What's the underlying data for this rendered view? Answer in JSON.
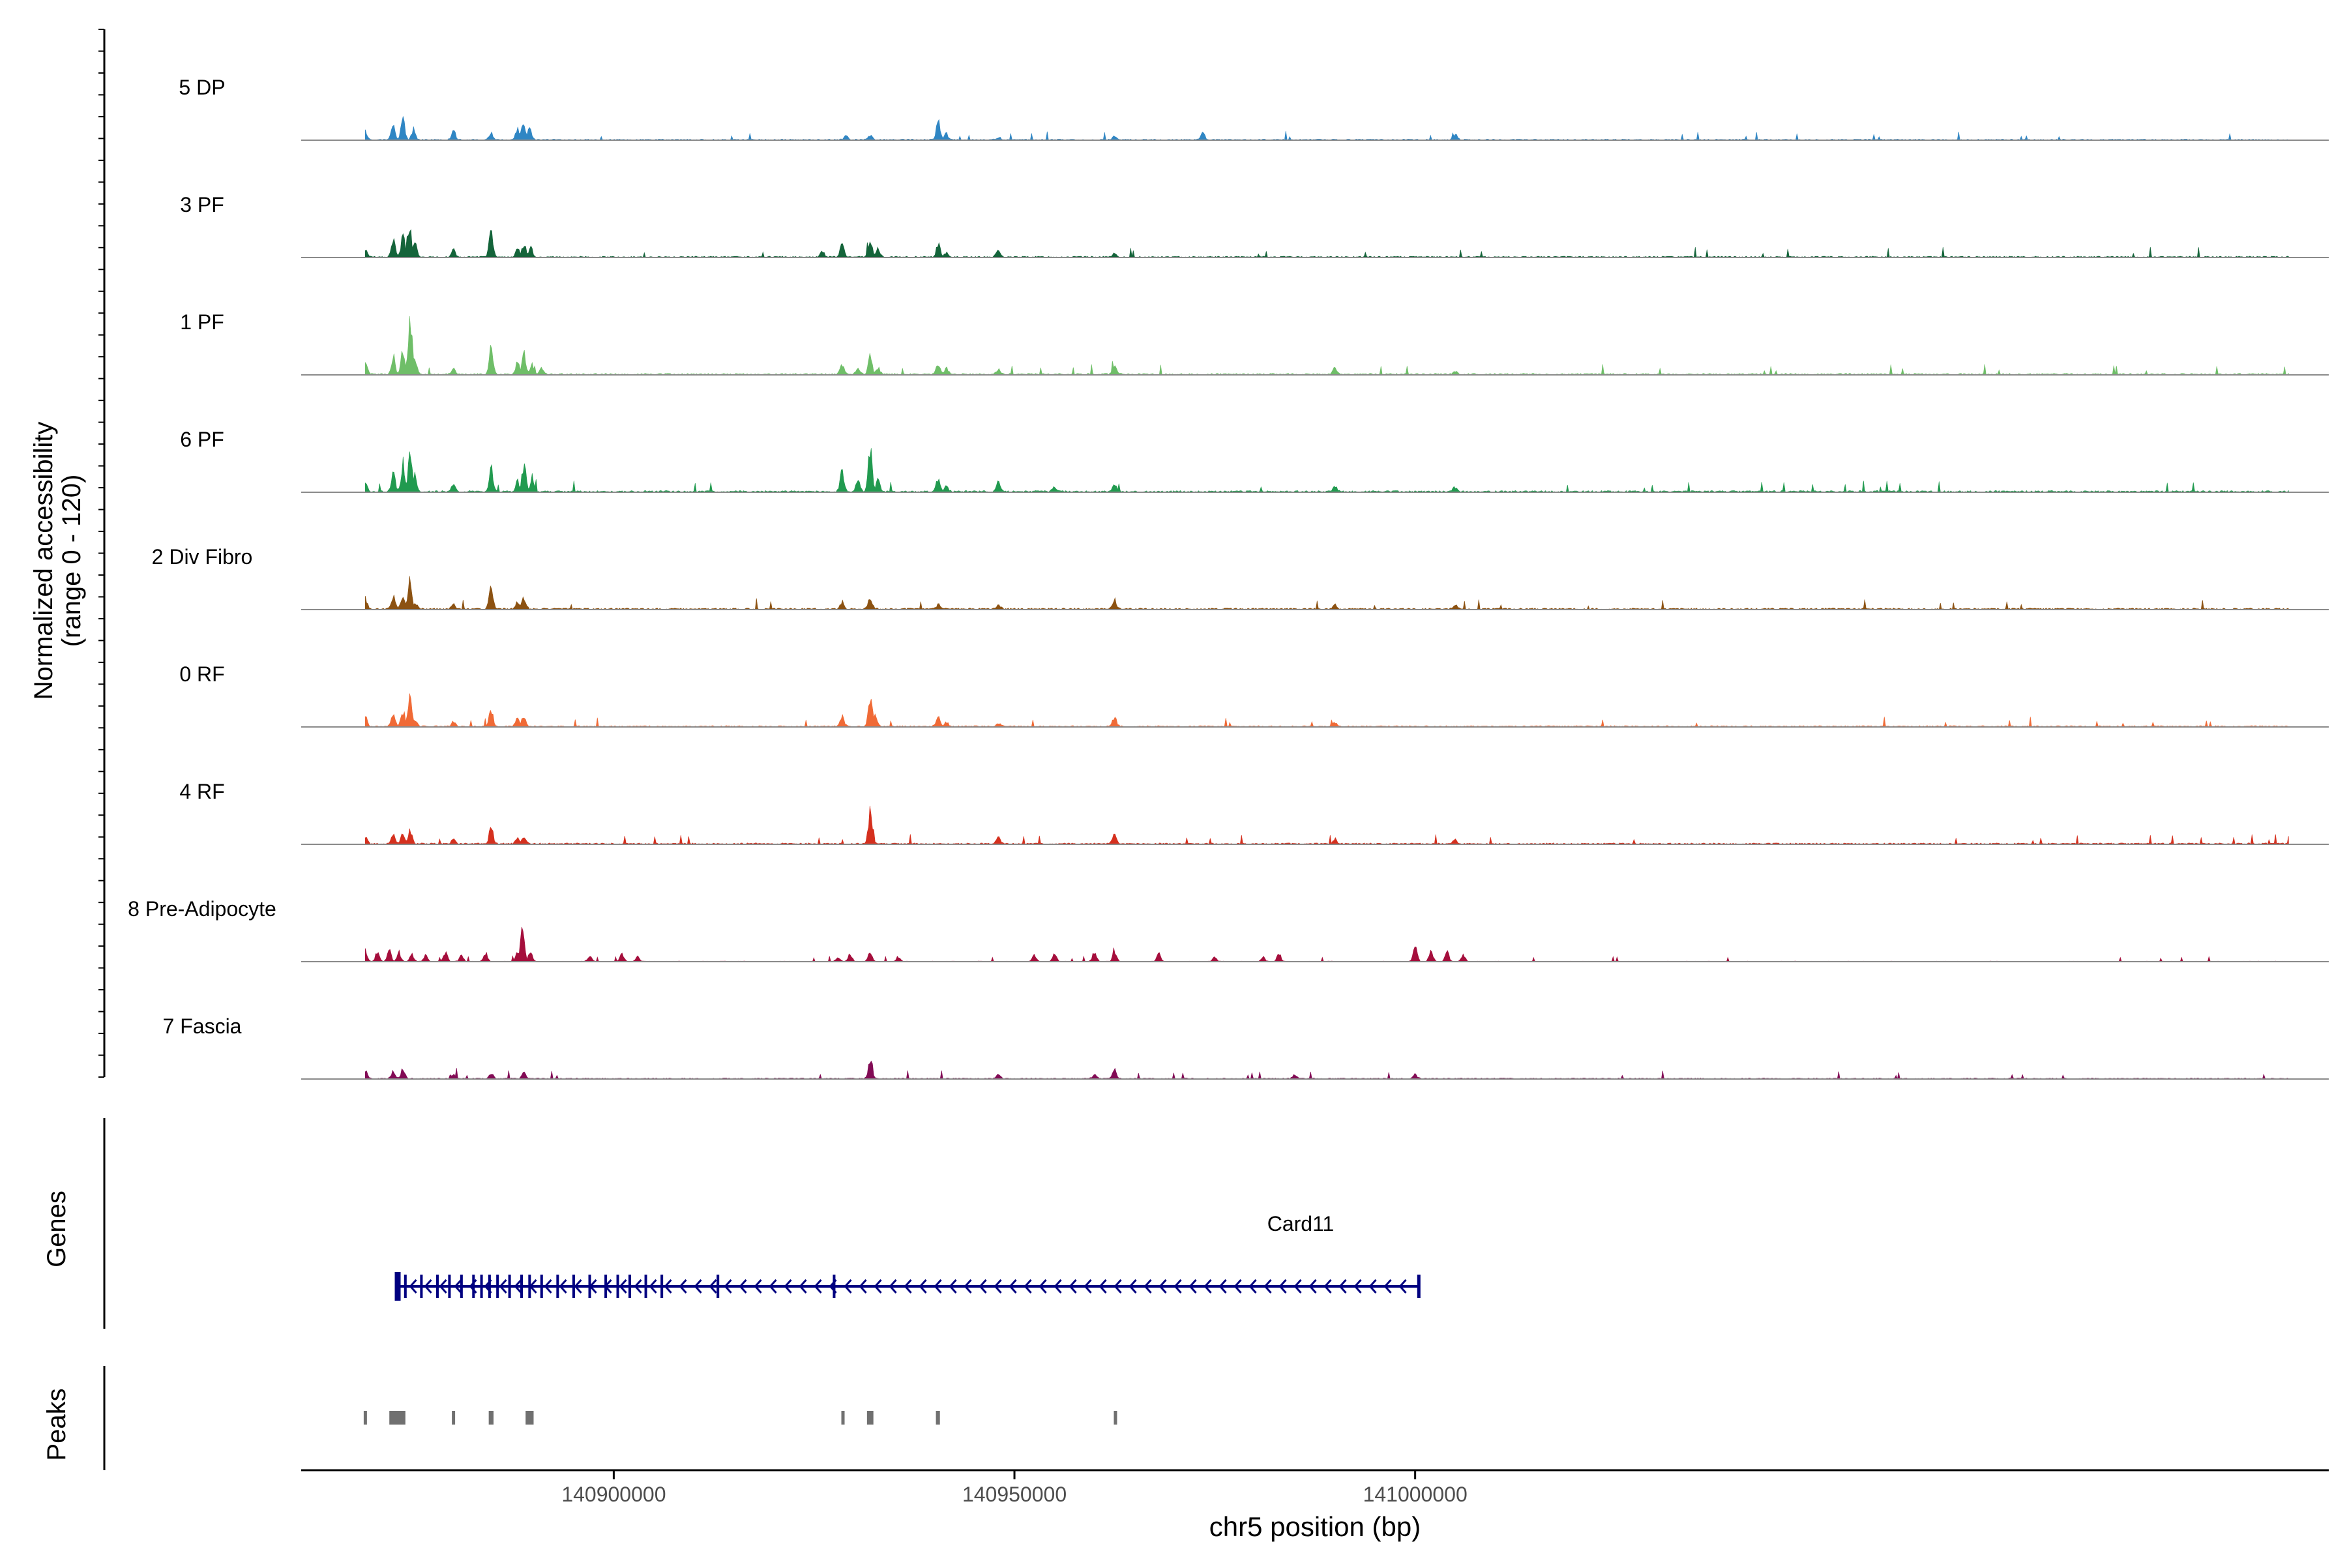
{
  "chart_data": {
    "type": "area",
    "title": "",
    "ylabel_line1": "Normalized accessibility",
    "ylabel_line2": "(range 0 - 120)",
    "ylim": [
      0,
      120
    ],
    "xlabel": "chr5 position (bp)",
    "xlim": [
      140861000,
      141114000
    ],
    "xticks": [
      {
        "value": 140900000,
        "label": "140900000"
      },
      {
        "value": 140950000,
        "label": "140950000"
      },
      {
        "value": 141000000,
        "label": "141000000"
      }
    ],
    "data_start": 140869000,
    "data_end": 141109000,
    "grid": false,
    "legend": "none",
    "series": [
      {
        "name": "5 DP",
        "color": "#2f86c4",
        "seed": 11,
        "noise": 1.2,
        "peaks": [
          [
            140869000,
            12
          ],
          [
            140872500,
            20
          ],
          [
            140873700,
            26
          ],
          [
            140875000,
            14
          ],
          [
            140880000,
            12
          ],
          [
            140884700,
            8
          ],
          [
            140888000,
            14
          ],
          [
            140888700,
            24
          ],
          [
            140889500,
            16
          ],
          [
            140929000,
            6
          ],
          [
            140932000,
            6
          ],
          [
            140940500,
            24
          ],
          [
            140941500,
            8
          ],
          [
            140948000,
            4
          ],
          [
            140962500,
            6
          ],
          [
            140973500,
            9
          ],
          [
            141005000,
            8
          ]
        ]
      },
      {
        "name": "3 PF",
        "color": "#14643a",
        "seed": 23,
        "noise": 1.4,
        "peaks": [
          [
            140869000,
            10
          ],
          [
            140872500,
            22
          ],
          [
            140873700,
            28
          ],
          [
            140874500,
            44
          ],
          [
            140875200,
            18
          ],
          [
            140880000,
            10
          ],
          [
            140884700,
            34
          ],
          [
            140888000,
            12
          ],
          [
            140888800,
            18
          ],
          [
            140889600,
            12
          ],
          [
            140926000,
            8
          ],
          [
            140928500,
            18
          ],
          [
            140932000,
            26
          ],
          [
            140933000,
            12
          ],
          [
            140940500,
            18
          ],
          [
            140941500,
            6
          ],
          [
            140948000,
            10
          ],
          [
            140962500,
            5
          ]
        ]
      },
      {
        "name": "1 PF",
        "color": "#6fbe68",
        "seed": 37,
        "noise": 1.6,
        "peaks": [
          [
            140869000,
            14
          ],
          [
            140872500,
            22
          ],
          [
            140873700,
            30
          ],
          [
            140874600,
            82
          ],
          [
            140875200,
            20
          ],
          [
            140880000,
            8
          ],
          [
            140884700,
            34
          ],
          [
            140888000,
            16
          ],
          [
            140888800,
            26
          ],
          [
            140889800,
            14
          ],
          [
            140891000,
            8
          ],
          [
            140928500,
            12
          ],
          [
            140930500,
            8
          ],
          [
            140932000,
            22
          ],
          [
            140933000,
            10
          ],
          [
            140940500,
            16
          ],
          [
            140941500,
            8
          ],
          [
            140948000,
            6
          ],
          [
            140962500,
            10
          ],
          [
            140990000,
            10
          ],
          [
            141005000,
            4
          ]
        ]
      },
      {
        "name": "6 PF",
        "color": "#219a4f",
        "seed": 53,
        "noise": 1.8,
        "peaks": [
          [
            140869000,
            14
          ],
          [
            140872500,
            24
          ],
          [
            140873700,
            36
          ],
          [
            140874600,
            62
          ],
          [
            140875200,
            22
          ],
          [
            140880000,
            10
          ],
          [
            140884700,
            30
          ],
          [
            140888000,
            14
          ],
          [
            140888800,
            34
          ],
          [
            140889800,
            14
          ],
          [
            140928500,
            26
          ],
          [
            140930500,
            14
          ],
          [
            140932000,
            52
          ],
          [
            140933000,
            16
          ],
          [
            140940500,
            16
          ],
          [
            140941500,
            8
          ],
          [
            140948000,
            12
          ],
          [
            140955000,
            6
          ],
          [
            140962500,
            10
          ],
          [
            140990000,
            8
          ],
          [
            141005000,
            6
          ]
        ]
      },
      {
        "name": "2 Div Fibro",
        "color": "#8c5212",
        "seed": 67,
        "noise": 1.6,
        "peaks": [
          [
            140869000,
            14
          ],
          [
            140872500,
            16
          ],
          [
            140873700,
            18
          ],
          [
            140874600,
            36
          ],
          [
            140875200,
            10
          ],
          [
            140880000,
            8
          ],
          [
            140884700,
            34
          ],
          [
            140888000,
            10
          ],
          [
            140888800,
            16
          ],
          [
            140928500,
            10
          ],
          [
            140932000,
            18
          ],
          [
            140940500,
            6
          ],
          [
            140948000,
            6
          ],
          [
            140962500,
            14
          ],
          [
            140990000,
            6
          ],
          [
            141005000,
            6
          ]
        ]
      },
      {
        "name": "0 RF",
        "color": "#f06a36",
        "seed": 79,
        "noise": 1.4,
        "peaks": [
          [
            140869000,
            14
          ],
          [
            140872500,
            18
          ],
          [
            140873700,
            22
          ],
          [
            140874600,
            40
          ],
          [
            140875200,
            10
          ],
          [
            140880000,
            6
          ],
          [
            140884700,
            22
          ],
          [
            140888000,
            10
          ],
          [
            140888800,
            14
          ],
          [
            140928500,
            14
          ],
          [
            140932000,
            40
          ],
          [
            140932600,
            14
          ],
          [
            140940500,
            12
          ],
          [
            140941500,
            6
          ],
          [
            140948000,
            5
          ],
          [
            140962500,
            12
          ],
          [
            140990000,
            5
          ]
        ]
      },
      {
        "name": "4 RF",
        "color": "#d5301e",
        "seed": 97,
        "noise": 1.5,
        "peaks": [
          [
            140869000,
            10
          ],
          [
            140872500,
            12
          ],
          [
            140873700,
            16
          ],
          [
            140874600,
            20
          ],
          [
            140880000,
            6
          ],
          [
            140884700,
            22
          ],
          [
            140888000,
            8
          ],
          [
            140888800,
            10
          ],
          [
            140932000,
            40
          ],
          [
            140948000,
            8
          ],
          [
            140962500,
            12
          ],
          [
            140990000,
            6
          ],
          [
            141005000,
            6
          ]
        ]
      },
      {
        "name": "8 Pre-Adipocyte",
        "color": "#a50e3c",
        "seed": 113,
        "noise": 0.6,
        "peaks": [
          [
            140869000,
            16
          ],
          [
            140870500,
            12
          ],
          [
            140872000,
            14
          ],
          [
            140873200,
            12
          ],
          [
            140874800,
            10
          ],
          [
            140876500,
            8
          ],
          [
            140879000,
            12
          ],
          [
            140881000,
            8
          ],
          [
            140884000,
            12
          ],
          [
            140888000,
            12
          ],
          [
            140888600,
            40
          ],
          [
            140889600,
            12
          ],
          [
            140897000,
            8
          ],
          [
            140901000,
            10
          ],
          [
            140903000,
            6
          ],
          [
            140928000,
            6
          ],
          [
            140929500,
            10
          ],
          [
            140932000,
            12
          ],
          [
            140935500,
            6
          ],
          [
            140952500,
            8
          ],
          [
            140955000,
            10
          ],
          [
            140960000,
            14
          ],
          [
            140962500,
            12
          ],
          [
            140968000,
            10
          ],
          [
            140975000,
            6
          ],
          [
            140981000,
            6
          ],
          [
            140983000,
            10
          ],
          [
            141000000,
            20
          ],
          [
            141002000,
            14
          ],
          [
            141004000,
            12
          ],
          [
            141006000,
            10
          ]
        ]
      },
      {
        "name": "7 Fascia",
        "color": "#820b55",
        "seed": 131,
        "noise": 1.2,
        "peaks": [
          [
            140869000,
            10
          ],
          [
            140872500,
            10
          ],
          [
            140873700,
            12
          ],
          [
            140880000,
            6
          ],
          [
            140884700,
            8
          ],
          [
            140888800,
            8
          ],
          [
            140932000,
            22
          ],
          [
            140948000,
            6
          ],
          [
            140960000,
            6
          ],
          [
            140962500,
            12
          ],
          [
            140985000,
            6
          ],
          [
            141000000,
            6
          ]
        ]
      }
    ],
    "gene": {
      "label": "Card11",
      "strand": "-",
      "start": 140873000,
      "end": 141000500,
      "exons": [
        140873000,
        140874000,
        140876000,
        140878000,
        140879500,
        140881000,
        140882500,
        140883500,
        140884500,
        140885500,
        140887000,
        140888500,
        140889500,
        140891000,
        140893000,
        140895000,
        140897000,
        140899000,
        140900500,
        140902000,
        140904000,
        140906000,
        140913000,
        140927500
      ]
    },
    "peaks_track": [
      [
        140868800,
        140869200
      ],
      [
        140872000,
        140874000
      ],
      [
        140879800,
        140880200
      ],
      [
        140884400,
        140885000
      ],
      [
        140889000,
        140890000
      ],
      [
        140928400,
        140928800
      ],
      [
        140931600,
        140932400
      ],
      [
        140940200,
        140940700
      ],
      [
        140962400,
        140962600
      ]
    ],
    "track_labels": {
      "genes": "Genes",
      "peaks": "Peaks"
    }
  }
}
